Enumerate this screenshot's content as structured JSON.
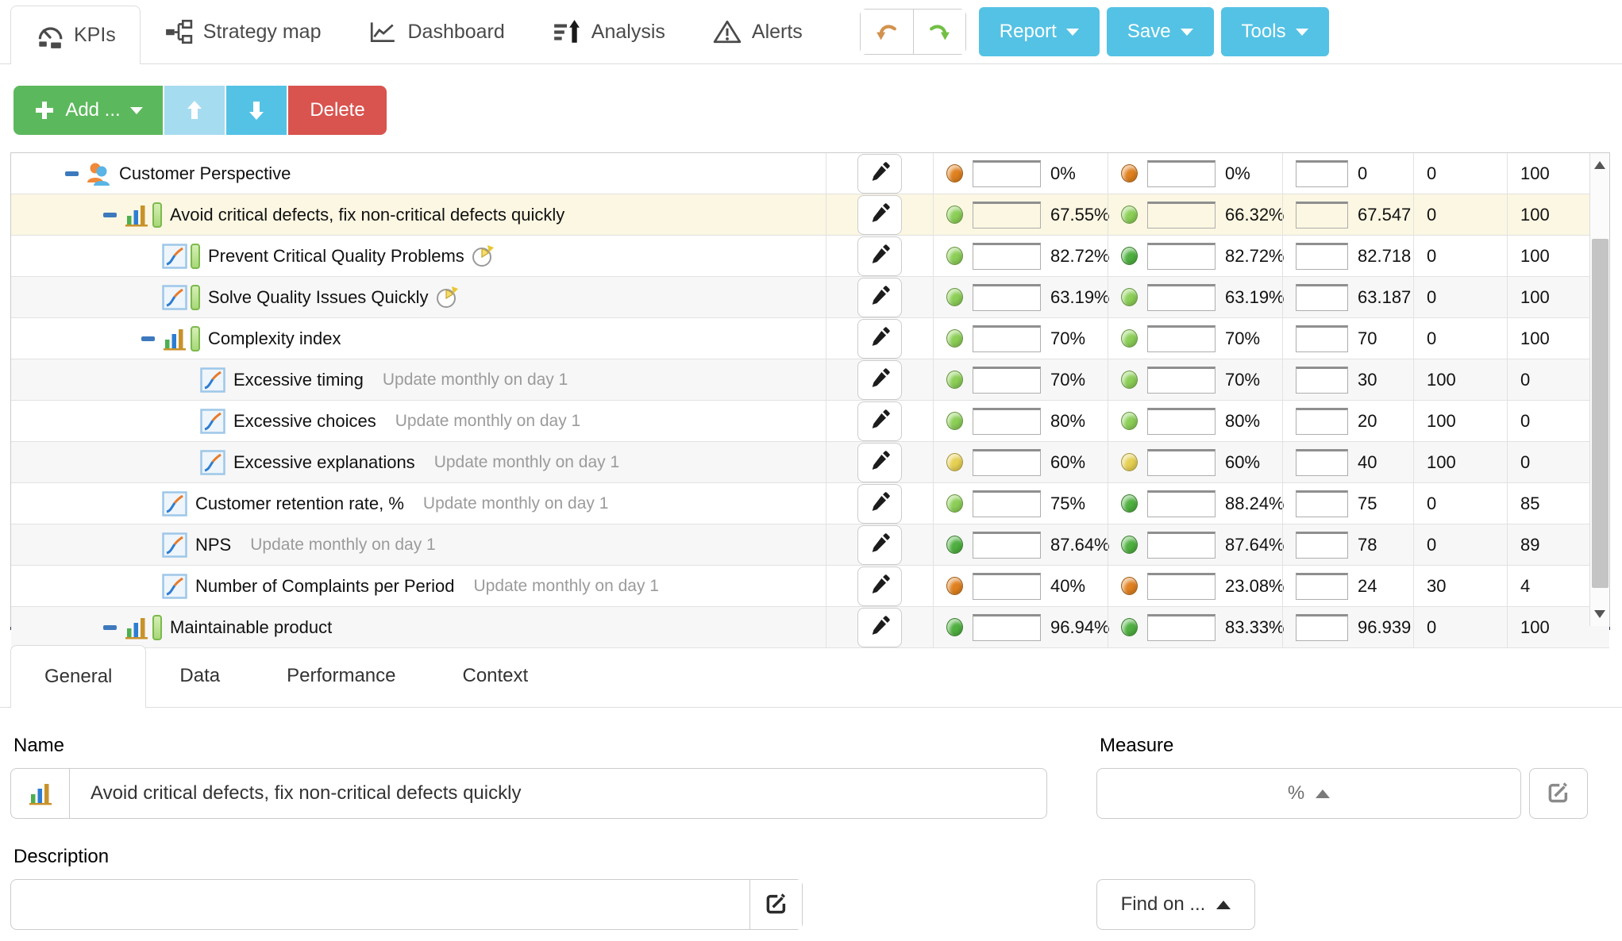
{
  "header": {
    "tabs": [
      {
        "label": "KPIs",
        "icon": "gauge-icon",
        "active": true
      },
      {
        "label": "Strategy map",
        "icon": "strategy-map-icon",
        "active": false
      },
      {
        "label": "Dashboard",
        "icon": "dashboard-icon",
        "active": false
      },
      {
        "label": "Analysis",
        "icon": "analysis-icon",
        "active": false
      },
      {
        "label": "Alerts",
        "icon": "alerts-icon",
        "active": false
      }
    ],
    "menus": [
      {
        "label": "Report"
      },
      {
        "label": "Save"
      },
      {
        "label": "Tools"
      }
    ],
    "accent_color": "#54c2e4"
  },
  "toolbar": {
    "add_label": "Add ...",
    "delete_label": "Delete",
    "add_color": "#5cb85c",
    "up_color": "#a6dcf0",
    "down_color": "#54c2e4",
    "delete_color": "#d9534f"
  },
  "status_colors": {
    "orange": "#e0811f",
    "green-light": "#8ccf57",
    "green": "#4fb040",
    "yellow": "#e6d052"
  },
  "selected_row_color": "#fcf7e2",
  "table": {
    "rows": [
      {
        "name": "Customer Perspective",
        "level": 0,
        "expander": "minus",
        "icon": "perspective-icon",
        "pill": false,
        "badge": false,
        "schedule": "",
        "selected": false,
        "progress1": {
          "color": "orange",
          "text": "0%"
        },
        "progress2": {
          "color": "orange",
          "text": "0%"
        },
        "value": "0",
        "min": "0",
        "max": "100"
      },
      {
        "name": "Avoid critical defects, fix non-critical defects quickly",
        "level": 1,
        "expander": "minus",
        "icon": "bar-chart-icon",
        "pill": true,
        "badge": false,
        "schedule": "",
        "selected": true,
        "progress1": {
          "color": "green-light",
          "text": "67.55%"
        },
        "progress2": {
          "color": "green-light",
          "text": "66.32%"
        },
        "value": "67.547",
        "min": "0",
        "max": "100"
      },
      {
        "name": "Prevent Critical Quality Problems",
        "level": 2,
        "expander": "none",
        "icon": "line-chart-icon",
        "pill": true,
        "badge": true,
        "schedule": "",
        "selected": false,
        "progress1": {
          "color": "green-light",
          "text": "82.72%"
        },
        "progress2": {
          "color": "green",
          "text": "82.72%"
        },
        "value": "82.718",
        "min": "0",
        "max": "100"
      },
      {
        "name": "Solve Quality Issues Quickly",
        "level": 2,
        "expander": "none",
        "icon": "line-chart-icon",
        "pill": true,
        "badge": true,
        "schedule": "",
        "selected": false,
        "progress1": {
          "color": "green-light",
          "text": "63.19%"
        },
        "progress2": {
          "color": "green-light",
          "text": "63.19%"
        },
        "value": "63.187",
        "min": "0",
        "max": "100"
      },
      {
        "name": "Complexity index",
        "level": 2,
        "expander": "minus",
        "icon": "bar-chart-icon",
        "pill": true,
        "badge": false,
        "schedule": "",
        "selected": false,
        "progress1": {
          "color": "green-light",
          "text": "70%"
        },
        "progress2": {
          "color": "green-light",
          "text": "70%"
        },
        "value": "70",
        "min": "0",
        "max": "100"
      },
      {
        "name": "Excessive timing",
        "level": 3,
        "expander": "none",
        "icon": "line-chart-icon",
        "pill": false,
        "badge": false,
        "schedule": "Update monthly on day 1",
        "selected": false,
        "progress1": {
          "color": "green-light",
          "text": "70%"
        },
        "progress2": {
          "color": "green-light",
          "text": "70%"
        },
        "value": "30",
        "min": "100",
        "max": "0"
      },
      {
        "name": "Excessive choices",
        "level": 3,
        "expander": "none",
        "icon": "line-chart-icon",
        "pill": false,
        "badge": false,
        "schedule": "Update monthly on day 1",
        "selected": false,
        "progress1": {
          "color": "green-light",
          "text": "80%"
        },
        "progress2": {
          "color": "green-light",
          "text": "80%"
        },
        "value": "20",
        "min": "100",
        "max": "0"
      },
      {
        "name": "Excessive explanations",
        "level": 3,
        "expander": "none",
        "icon": "line-chart-icon",
        "pill": false,
        "badge": false,
        "schedule": "Update monthly on day 1",
        "selected": false,
        "progress1": {
          "color": "yellow",
          "text": "60%"
        },
        "progress2": {
          "color": "yellow",
          "text": "60%"
        },
        "value": "40",
        "min": "100",
        "max": "0"
      },
      {
        "name": "Customer retention rate, %",
        "level": 2,
        "expander": "none",
        "icon": "line-chart-icon",
        "pill": false,
        "badge": false,
        "schedule": "Update monthly on day 1",
        "selected": false,
        "progress1": {
          "color": "green-light",
          "text": "75%"
        },
        "progress2": {
          "color": "green",
          "text": "88.24%"
        },
        "value": "75",
        "min": "0",
        "max": "85"
      },
      {
        "name": "NPS",
        "level": 2,
        "expander": "none",
        "icon": "line-chart-icon",
        "pill": false,
        "badge": false,
        "schedule": "Update monthly on day 1",
        "selected": false,
        "progress1": {
          "color": "green",
          "text": "87.64%"
        },
        "progress2": {
          "color": "green",
          "text": "87.64%"
        },
        "value": "78",
        "min": "0",
        "max": "89"
      },
      {
        "name": "Number of Complaints per Period",
        "level": 2,
        "expander": "none",
        "icon": "line-chart-icon",
        "pill": false,
        "badge": false,
        "schedule": "Update monthly on day 1",
        "selected": false,
        "progress1": {
          "color": "orange",
          "text": "40%"
        },
        "progress2": {
          "color": "orange",
          "text": "23.08%"
        },
        "value": "24",
        "min": "30",
        "max": "4"
      },
      {
        "name": "Maintainable product",
        "level": 1,
        "expander": "minus",
        "icon": "bar-chart-icon",
        "pill": true,
        "badge": false,
        "schedule": "",
        "selected": false,
        "progress1": {
          "color": "green",
          "text": "96.94%"
        },
        "progress2": {
          "color": "green",
          "text": "83.33%"
        },
        "value": "96.939",
        "min": "0",
        "max": "100"
      }
    ]
  },
  "panel": {
    "tabs": [
      {
        "label": "General",
        "active": true
      },
      {
        "label": "Data",
        "active": false
      },
      {
        "label": "Performance",
        "active": false
      },
      {
        "label": "Context",
        "active": false
      }
    ],
    "name": {
      "label": "Name",
      "value": "Avoid critical defects, fix non-critical defects quickly"
    },
    "measure": {
      "label": "Measure",
      "value": "%"
    },
    "description": {
      "label": "Description",
      "value": ""
    },
    "find_on_label": "Find on ..."
  }
}
